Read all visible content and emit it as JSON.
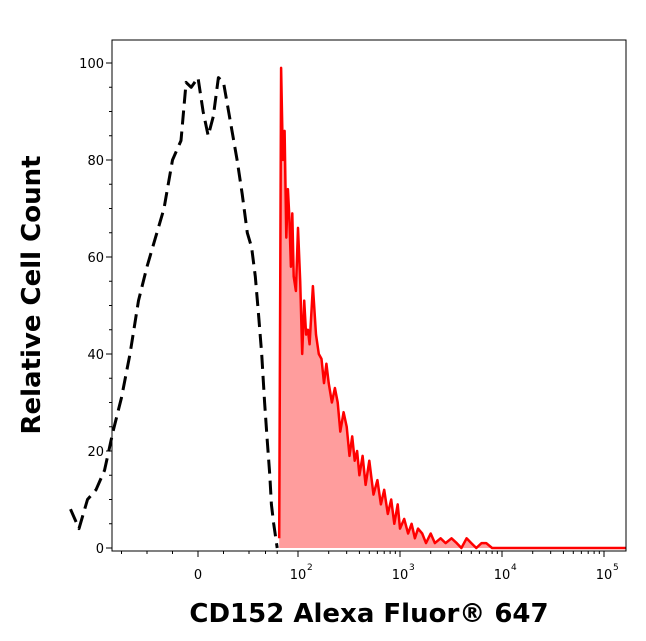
{
  "chart_data": {
    "type": "area",
    "title": "",
    "xlabel": "CD152 Alexa Fluor® 647",
    "ylabel": "Relative Cell Count",
    "xscale": "biexponential",
    "ylim": [
      0,
      105
    ],
    "yticks": [
      {
        "value": 0,
        "label": "0"
      },
      {
        "value": 20,
        "label": "20"
      },
      {
        "value": 40,
        "label": "40"
      },
      {
        "value": 60,
        "label": "60"
      },
      {
        "value": 80,
        "label": "80"
      },
      {
        "value": 100,
        "label": "100"
      }
    ],
    "xticks": [
      {
        "value": 0,
        "base": "0",
        "exp": ""
      },
      {
        "value": 100,
        "base": "10",
        "exp": "2"
      },
      {
        "value": 1000,
        "base": "10",
        "exp": "3"
      },
      {
        "value": 10000,
        "base": "10",
        "exp": "4"
      },
      {
        "value": 100000,
        "base": "10",
        "exp": "5"
      }
    ],
    "grid": false,
    "legend": "none",
    "series": [
      {
        "style": "dashed",
        "color": "#000000",
        "fill": "none",
        "x": [
          -75,
          -70,
          -65,
          -60,
          -55,
          -50,
          -45,
          -40,
          -35,
          -30,
          -25,
          -20,
          -15,
          -10,
          -7,
          -4,
          0,
          3,
          6,
          9,
          12,
          15,
          18,
          20,
          23,
          26,
          29,
          32,
          35,
          38,
          41,
          44,
          47,
          50,
          52,
          55,
          58,
          60
        ],
        "values": [
          8,
          4,
          10,
          12,
          16,
          24,
          31,
          40,
          51,
          58,
          64,
          70,
          80,
          84,
          96,
          95,
          97,
          90,
          85,
          89,
          97,
          96,
          90,
          86,
          80,
          73,
          65,
          62,
          56,
          48,
          40,
          30,
          22,
          15,
          9,
          5,
          2,
          0
        ]
      },
      {
        "style": "solid",
        "color": "#ff0000",
        "fill": "#ff9d9d",
        "x": [
          63,
          66,
          69,
          72,
          75,
          78,
          81,
          84,
          87,
          90,
          95,
          100,
          105,
          110,
          115,
          120,
          125,
          130,
          140,
          150,
          160,
          170,
          180,
          190,
          200,
          215,
          230,
          245,
          260,
          280,
          300,
          320,
          340,
          360,
          380,
          400,
          430,
          460,
          500,
          550,
          600,
          650,
          700,
          760,
          820,
          880,
          950,
          1000,
          1100,
          1200,
          1300,
          1400,
          1500,
          1650,
          1800,
          2000,
          2200,
          2500,
          2800,
          3200,
          3600,
          4000,
          4500,
          5000,
          5600,
          6300,
          7000,
          8000,
          9000,
          10000,
          11000
        ],
        "values": [
          2,
          99,
          80,
          86,
          64,
          74,
          68,
          58,
          69,
          56,
          53,
          66,
          55,
          40,
          51,
          44,
          45,
          42,
          54,
          44,
          40,
          39,
          34,
          38,
          34,
          30,
          33,
          30,
          24,
          28,
          25,
          19,
          23,
          18,
          20,
          15,
          19,
          13,
          18,
          11,
          14,
          9,
          12,
          7,
          10,
          5,
          9,
          4,
          6,
          3,
          5,
          2,
          4,
          3,
          1,
          3,
          1,
          2,
          1,
          2,
          1,
          0,
          2,
          1,
          0,
          1,
          1,
          0,
          0,
          0,
          0
        ]
      }
    ]
  }
}
